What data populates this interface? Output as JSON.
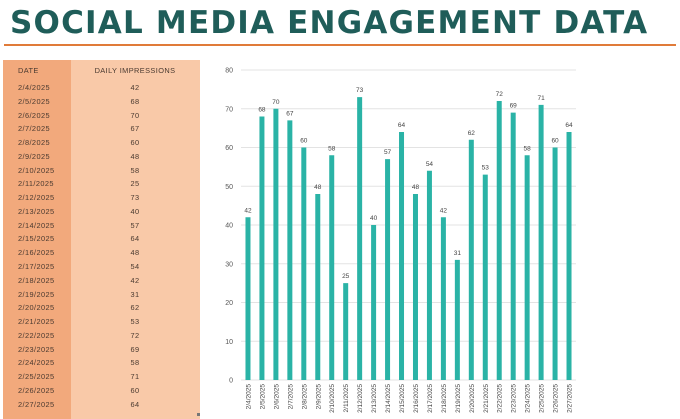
{
  "page": {
    "title": "SOCIAL MEDIA ENGAGEMENT DATA"
  },
  "table": {
    "headers": {
      "date": "DATE",
      "impressions": "DAILY IMPRESSIONS"
    },
    "rows": [
      {
        "date": "2/4/2025",
        "value": "42"
      },
      {
        "date": "2/5/2025",
        "value": "68"
      },
      {
        "date": "2/6/2025",
        "value": "70"
      },
      {
        "date": "2/7/2025",
        "value": "67"
      },
      {
        "date": "2/8/2025",
        "value": "60"
      },
      {
        "date": "2/9/2025",
        "value": "48"
      },
      {
        "date": "2/10/2025",
        "value": "58"
      },
      {
        "date": "2/11/2025",
        "value": "25"
      },
      {
        "date": "2/12/2025",
        "value": "73"
      },
      {
        "date": "2/13/2025",
        "value": "40"
      },
      {
        "date": "2/14/2025",
        "value": "57"
      },
      {
        "date": "2/15/2025",
        "value": "64"
      },
      {
        "date": "2/16/2025",
        "value": "48"
      },
      {
        "date": "2/17/2025",
        "value": "54"
      },
      {
        "date": "2/18/2025",
        "value": "42"
      },
      {
        "date": "2/19/2025",
        "value": "31"
      },
      {
        "date": "2/20/2025",
        "value": "62"
      },
      {
        "date": "2/21/2025",
        "value": "53"
      },
      {
        "date": "2/22/2025",
        "value": "72"
      },
      {
        "date": "2/23/2025",
        "value": "69"
      },
      {
        "date": "2/24/2025",
        "value": "58"
      },
      {
        "date": "2/25/2025",
        "value": "71"
      },
      {
        "date": "2/26/2025",
        "value": "60"
      },
      {
        "date": "2/27/2025",
        "value": "64"
      }
    ]
  },
  "colors": {
    "title": "#1f5d59",
    "accent_rule": "#e07b39",
    "date_column": "#f2a97c",
    "value_column": "#f9c9a8",
    "bar": "#2ab3a6",
    "gridline": "#e3e3e3"
  },
  "chart_data": {
    "type": "bar",
    "categories": [
      "2/4/2025",
      "2/5/2025",
      "2/6/2025",
      "2/7/2025",
      "2/8/2025",
      "2/9/2025",
      "2/10/2025",
      "2/11/2025",
      "2/12/2025",
      "2/13/2025",
      "2/14/2025",
      "2/15/2025",
      "2/16/2025",
      "2/17/2025",
      "2/18/2025",
      "2/19/2025",
      "2/20/2025",
      "2/21/2025",
      "2/22/2025",
      "2/23/2025",
      "2/24/2025",
      "2/25/2025",
      "2/26/2025",
      "2/27/2025"
    ],
    "values": [
      42,
      68,
      70,
      67,
      60,
      48,
      58,
      25,
      73,
      40,
      57,
      64,
      48,
      54,
      42,
      31,
      62,
      53,
      72,
      69,
      58,
      71,
      60,
      64
    ],
    "yticks": [
      0,
      10,
      20,
      30,
      40,
      50,
      60,
      70,
      80
    ],
    "ylim": [
      0,
      80
    ],
    "grid": true,
    "data_labels": true,
    "legend": "none"
  }
}
